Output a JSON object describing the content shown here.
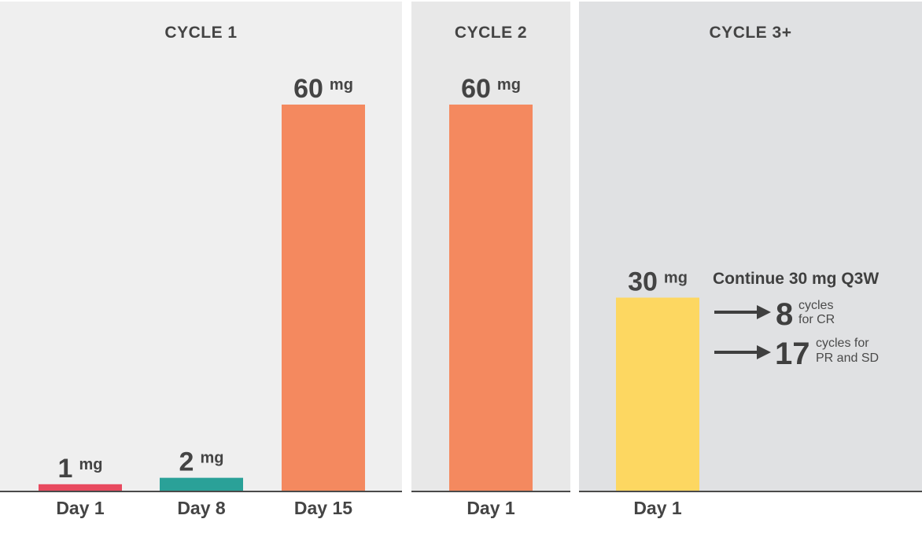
{
  "panels": [
    {
      "title": "CYCLE 1"
    },
    {
      "title": "CYCLE 2"
    },
    {
      "title": "CYCLE 3+"
    }
  ],
  "chart_data": {
    "type": "bar",
    "unit": "mg",
    "groups": [
      "CYCLE 1",
      "CYCLE 2",
      "CYCLE 3+"
    ],
    "bars": [
      {
        "group": "CYCLE 1",
        "category": "Day 1",
        "value": 1,
        "value_label": "1",
        "color": "#e84a5f"
      },
      {
        "group": "CYCLE 1",
        "category": "Day 8",
        "value": 2,
        "value_label": "2",
        "color": "#2aa198"
      },
      {
        "group": "CYCLE 1",
        "category": "Day 15",
        "value": 60,
        "value_label": "60",
        "color": "#f4895f"
      },
      {
        "group": "CYCLE 2",
        "category": "Day 1",
        "value": 60,
        "value_label": "60",
        "color": "#f4895f"
      },
      {
        "group": "CYCLE 3+",
        "category": "Day 1",
        "value": 30,
        "value_label": "30",
        "color": "#fdd761"
      }
    ],
    "ylim": [
      0,
      60
    ]
  },
  "annotation": {
    "title": "Continue 30 mg Q3W",
    "items": [
      {
        "number": "8",
        "line1": "cycles",
        "line2": "for CR"
      },
      {
        "number": "17",
        "line1": "cycles for",
        "line2": "PR and SD"
      }
    ]
  }
}
